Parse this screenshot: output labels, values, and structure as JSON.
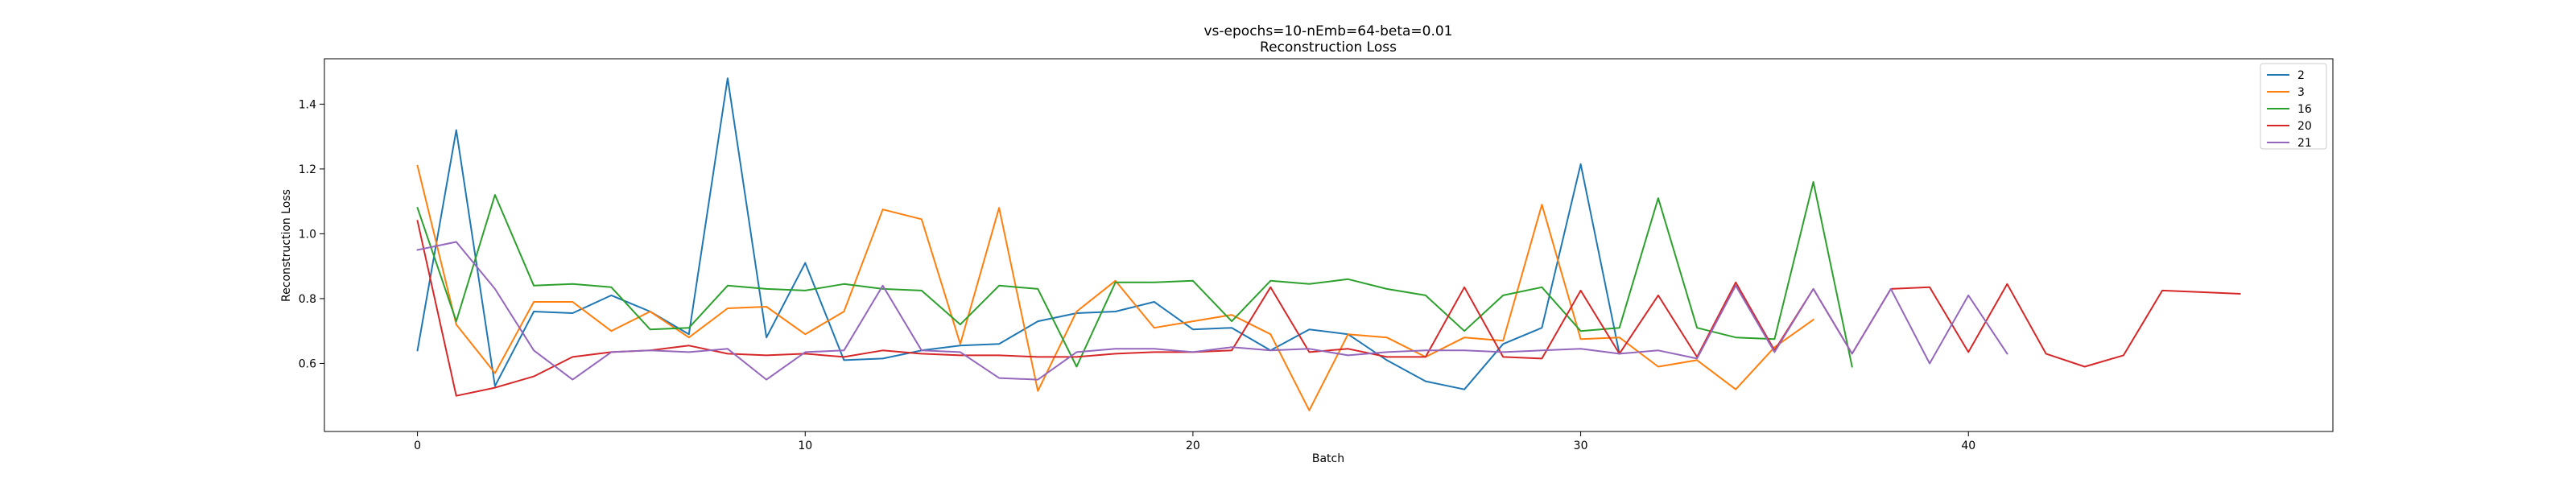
{
  "chart_data": {
    "type": "line",
    "title": "vs-epochs=10-nEmb=64-beta=0.01",
    "subtitle": "Reconstruction Loss",
    "xlabel": "Batch",
    "ylabel": "Reconstruction Loss",
    "xlim": [
      -2.4,
      49.4
    ],
    "ylim": [
      0.39,
      1.54
    ],
    "xticks": [
      0,
      10,
      20,
      30,
      40
    ],
    "yticks": [
      0.6,
      0.8,
      1.0,
      1.2,
      1.4
    ],
    "xtick_labels": [
      "0",
      "10",
      "20",
      "30",
      "40"
    ],
    "ytick_labels": [
      "0.6",
      "0.8",
      "1.0",
      "1.2",
      "1.4"
    ],
    "grid": false,
    "legend_position": "top-right",
    "series": [
      {
        "name": "2",
        "color": "#1f77b4",
        "x": [
          0,
          1,
          2,
          3,
          4,
          5,
          6,
          7,
          8,
          9,
          10,
          11,
          12,
          13,
          14,
          15,
          16,
          17,
          18,
          19,
          20,
          21,
          22,
          23,
          24,
          25,
          26,
          27,
          28,
          29,
          30,
          31
        ],
        "values": [
          0.64,
          1.32,
          0.53,
          0.76,
          0.755,
          0.81,
          0.76,
          0.69,
          1.48,
          0.68,
          0.91,
          0.61,
          0.615,
          0.64,
          0.655,
          0.66,
          0.73,
          0.755,
          0.76,
          0.79,
          0.705,
          0.71,
          0.64,
          0.705,
          0.69,
          0.61,
          0.545,
          0.52,
          0.66,
          0.71,
          1.215,
          0.63
        ]
      },
      {
        "name": "3",
        "color": "#ff7f0e",
        "x": [
          0,
          1,
          2,
          3,
          4,
          5,
          6,
          7,
          8,
          9,
          10,
          11,
          12,
          13,
          14,
          15,
          16,
          17,
          18,
          19,
          20,
          21,
          22,
          23,
          24,
          25,
          26,
          27,
          28,
          29,
          30,
          31,
          32,
          33,
          34,
          35,
          36
        ],
        "values": [
          1.21,
          0.72,
          0.57,
          0.79,
          0.79,
          0.7,
          0.76,
          0.68,
          0.77,
          0.775,
          0.69,
          0.76,
          1.075,
          1.045,
          0.66,
          1.08,
          0.515,
          0.76,
          0.855,
          0.71,
          0.73,
          0.75,
          0.69,
          0.455,
          0.69,
          0.68,
          0.62,
          0.68,
          0.67,
          1.09,
          0.675,
          0.68,
          0.59,
          0.61,
          0.52,
          0.65,
          0.735
        ]
      },
      {
        "name": "16",
        "color": "#2ca02c",
        "x": [
          0,
          1,
          2,
          3,
          4,
          5,
          6,
          7,
          8,
          9,
          10,
          11,
          12,
          13,
          14,
          15,
          16,
          17,
          18,
          19,
          20,
          21,
          22,
          23,
          24,
          25,
          26,
          27,
          28,
          29,
          30,
          31,
          32,
          33,
          34,
          35,
          36,
          37
        ],
        "values": [
          1.08,
          0.73,
          1.12,
          0.84,
          0.845,
          0.835,
          0.705,
          0.71,
          0.84,
          0.83,
          0.825,
          0.845,
          0.83,
          0.825,
          0.72,
          0.84,
          0.83,
          0.59,
          0.85,
          0.85,
          0.855,
          0.73,
          0.855,
          0.845,
          0.86,
          0.83,
          0.81,
          0.7,
          0.81,
          0.835,
          0.7,
          0.71,
          1.11,
          0.71,
          0.68,
          0.675,
          1.16,
          0.59
        ]
      },
      {
        "name": "20",
        "color": "#d62728",
        "x": [
          0,
          1,
          2,
          3,
          4,
          5,
          6,
          7,
          8,
          9,
          10,
          11,
          12,
          13,
          14,
          15,
          16,
          17,
          18,
          19,
          20,
          21,
          22,
          23,
          24,
          25,
          26,
          27,
          28,
          29,
          30,
          31,
          32,
          33,
          34,
          35,
          36,
          37,
          38,
          39,
          40,
          41,
          42,
          43,
          44,
          45,
          46,
          47
        ],
        "values": [
          1.04,
          0.5,
          0.525,
          0.56,
          0.62,
          0.635,
          0.64,
          0.655,
          0.63,
          0.625,
          0.63,
          0.62,
          0.64,
          0.63,
          0.625,
          0.625,
          0.62,
          0.62,
          0.63,
          0.635,
          0.635,
          0.64,
          0.835,
          0.635,
          0.645,
          0.62,
          0.62,
          0.835,
          0.62,
          0.615,
          0.825,
          0.63,
          0.81,
          0.62,
          0.85,
          0.64,
          0.83,
          0.63,
          0.83,
          0.835,
          0.635,
          0.845,
          0.63,
          0.59,
          0.625,
          0.825,
          0.82,
          0.815
        ]
      },
      {
        "name": "21",
        "color": "#9467bd",
        "x": [
          0,
          1,
          2,
          3,
          4,
          5,
          6,
          7,
          8,
          9,
          10,
          11,
          12,
          13,
          14,
          15,
          16,
          17,
          18,
          19,
          20,
          21,
          22,
          23,
          24,
          25,
          26,
          27,
          28,
          29,
          30,
          31,
          32,
          33,
          34,
          35,
          36,
          37,
          38,
          39,
          40,
          41
        ],
        "values": [
          0.95,
          0.975,
          0.83,
          0.64,
          0.55,
          0.635,
          0.64,
          0.635,
          0.645,
          0.55,
          0.635,
          0.64,
          0.84,
          0.64,
          0.635,
          0.555,
          0.55,
          0.635,
          0.645,
          0.645,
          0.635,
          0.65,
          0.64,
          0.645,
          0.625,
          0.635,
          0.64,
          0.64,
          0.635,
          0.64,
          0.645,
          0.63,
          0.64,
          0.615,
          0.84,
          0.635,
          0.83,
          0.63,
          0.83,
          0.6,
          0.81,
          0.63
        ]
      }
    ]
  }
}
